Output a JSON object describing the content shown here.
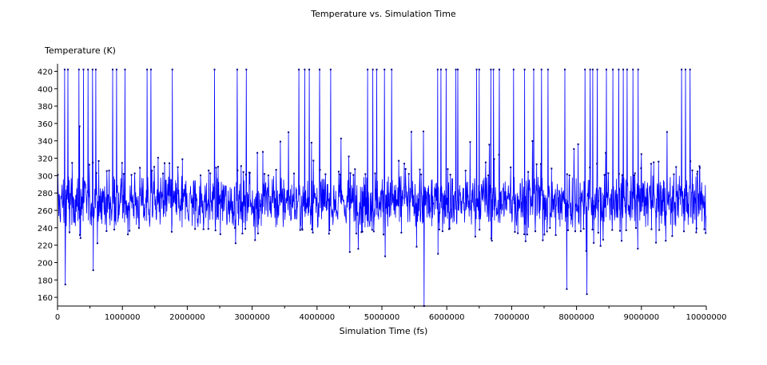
{
  "chart_data": {
    "type": "line",
    "title": "Temperature vs. Simulation Time",
    "xlabel": "Simulation Time (fs)",
    "ylabel": "Temperature (K)",
    "xlim": [
      0,
      10000000
    ],
    "ylim": [
      150,
      425
    ],
    "x_ticks": [
      0,
      1000000,
      2000000,
      3000000,
      4000000,
      5000000,
      6000000,
      7000000,
      8000000,
      9000000,
      10000000
    ],
    "x_tick_labels": [
      "0",
      "1000000",
      "2000000",
      "3000000",
      "4000000",
      "5000000",
      "6000000",
      "7000000",
      "8000000",
      "9000000",
      "10000000"
    ],
    "y_ticks": [
      160,
      180,
      200,
      220,
      240,
      260,
      280,
      300,
      320,
      340,
      360,
      380,
      400,
      420
    ],
    "y_tick_labels": [
      "160",
      "180",
      "200",
      "220",
      "240",
      "260",
      "280",
      "300",
      "320",
      "340",
      "360",
      "380",
      "400",
      "420"
    ],
    "grid": false,
    "legend": "none",
    "color": "#0000ff",
    "series": [
      {
        "num_points": 2000,
        "x_start": 0,
        "x_step": 5000,
        "typical_mean": 270,
        "typical_range": [
          195,
          345
        ],
        "clip_max": 422,
        "clip_min": 150,
        "spike_times": [
          110000,
          160000,
          330000,
          400000,
          470000,
          540000,
          590000,
          850000,
          910000,
          1040000,
          1380000,
          1440000,
          1770000,
          2420000,
          2770000,
          2910000,
          3720000,
          3810000,
          3880000,
          4040000,
          4210000,
          4780000,
          4860000,
          4920000,
          5040000,
          5150000,
          5860000,
          5910000,
          5990000,
          6140000,
          6170000,
          6460000,
          6500000,
          6680000,
          6720000,
          6810000,
          7030000,
          7200000,
          7340000,
          7460000,
          7560000,
          7820000,
          8130000,
          8210000,
          8250000,
          8320000,
          8460000,
          8560000,
          8650000,
          8720000,
          8780000,
          8870000,
          8950000,
          9620000,
          9680000,
          9750000
        ],
        "dip_times": [
          5650000,
          8160000,
          120000,
          7850000
        ]
      }
    ]
  }
}
